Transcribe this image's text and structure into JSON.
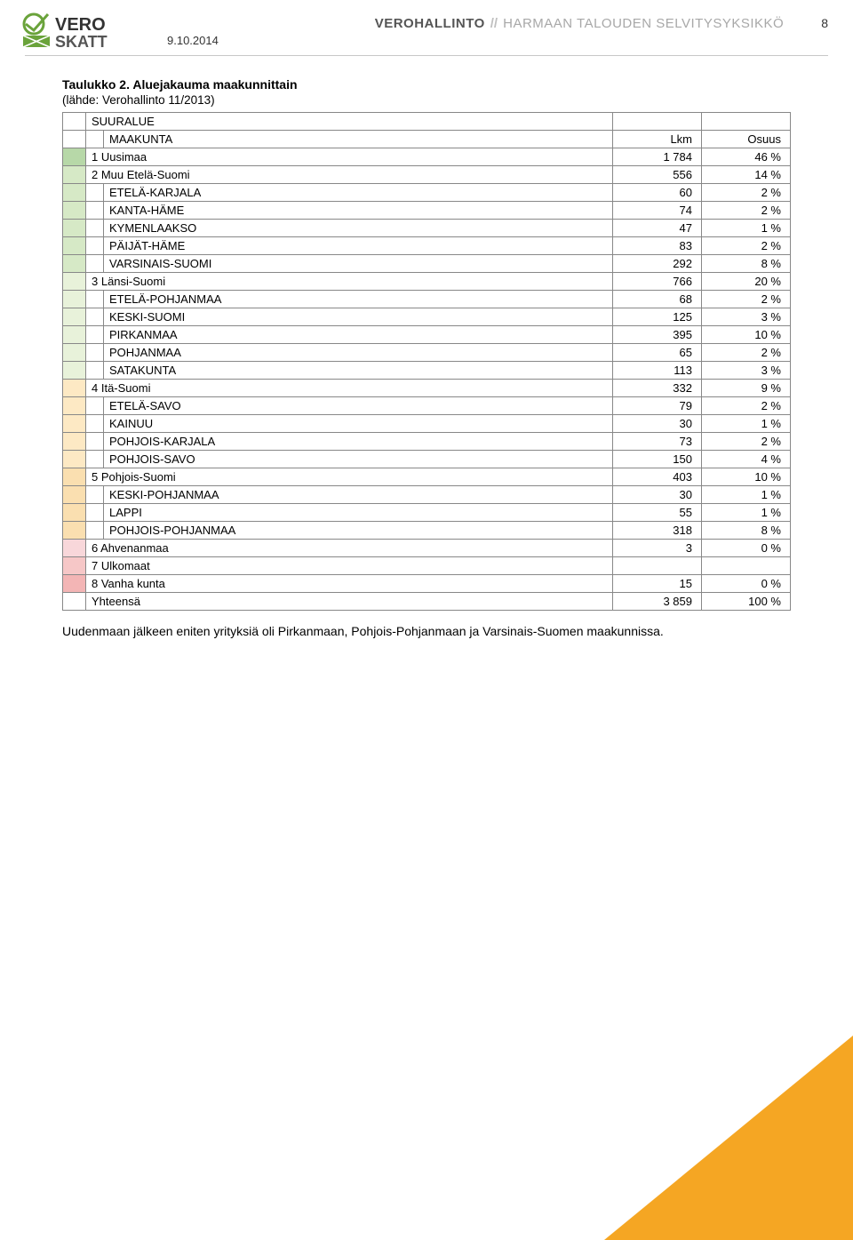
{
  "header": {
    "date": "9.10.2014",
    "agency": "VEROHALLINTO",
    "separator": "//",
    "unit": "HARMAAN TALOUDEN SELVITYSYKSIKKÖ",
    "page_number": "8",
    "logo_text_top": "VERO",
    "logo_text_bottom": "SKATT"
  },
  "table": {
    "title": "Taulukko 2. Aluejakauma maakunnittain",
    "subtitle": "(lähde: Verohallinto 11/2013)",
    "head": {
      "suuralue_label": "SUURALUE",
      "maakunta_label": "MAAKUNTA",
      "lkm_label": "Lkm",
      "osuus_label": "Osuus"
    },
    "colors": {
      "blank": "#ffffff",
      "region1": "#b7d8a8",
      "region2": "#d6e9c6",
      "region3": "#e8f2da",
      "region4": "#fde9c4",
      "region5": "#fadfb0",
      "region6": "#f8d7da",
      "region7": "#f6c7c7",
      "region8": "#f3b5b5",
      "footer": "#ffffff",
      "border": "#888888",
      "background": "#ffffff"
    },
    "rows": [
      {
        "swatch": "region1",
        "indent": false,
        "label": "1 Uusimaa",
        "lkm": "1 784",
        "osuus": "46 %"
      },
      {
        "swatch": "region2",
        "indent": false,
        "label": "2 Muu Etelä-Suomi",
        "lkm": "556",
        "osuus": "14 %"
      },
      {
        "swatch": "region2",
        "indent": true,
        "label": "ETELÄ-KARJALA",
        "lkm": "60",
        "osuus": "2 %"
      },
      {
        "swatch": "region2",
        "indent": true,
        "label": "KANTA-HÄME",
        "lkm": "74",
        "osuus": "2 %"
      },
      {
        "swatch": "region2",
        "indent": true,
        "label": "KYMENLAAKSO",
        "lkm": "47",
        "osuus": "1 %"
      },
      {
        "swatch": "region2",
        "indent": true,
        "label": "PÄIJÄT-HÄME",
        "lkm": "83",
        "osuus": "2 %"
      },
      {
        "swatch": "region2",
        "indent": true,
        "label": "VARSINAIS-SUOMI",
        "lkm": "292",
        "osuus": "8 %"
      },
      {
        "swatch": "region3",
        "indent": false,
        "label": "3 Länsi-Suomi",
        "lkm": "766",
        "osuus": "20 %"
      },
      {
        "swatch": "region3",
        "indent": true,
        "label": "ETELÄ-POHJANMAA",
        "lkm": "68",
        "osuus": "2 %"
      },
      {
        "swatch": "region3",
        "indent": true,
        "label": "KESKI-SUOMI",
        "lkm": "125",
        "osuus": "3 %"
      },
      {
        "swatch": "region3",
        "indent": true,
        "label": "PIRKANMAA",
        "lkm": "395",
        "osuus": "10 %"
      },
      {
        "swatch": "region3",
        "indent": true,
        "label": "POHJANMAA",
        "lkm": "65",
        "osuus": "2 %"
      },
      {
        "swatch": "region3",
        "indent": true,
        "label": "SATAKUNTA",
        "lkm": "113",
        "osuus": "3 %"
      },
      {
        "swatch": "region4",
        "indent": false,
        "label": "4 Itä-Suomi",
        "lkm": "332",
        "osuus": "9 %"
      },
      {
        "swatch": "region4",
        "indent": true,
        "label": "ETELÄ-SAVO",
        "lkm": "79",
        "osuus": "2 %"
      },
      {
        "swatch": "region4",
        "indent": true,
        "label": "KAINUU",
        "lkm": "30",
        "osuus": "1 %"
      },
      {
        "swatch": "region4",
        "indent": true,
        "label": "POHJOIS-KARJALA",
        "lkm": "73",
        "osuus": "2 %"
      },
      {
        "swatch": "region4",
        "indent": true,
        "label": "POHJOIS-SAVO",
        "lkm": "150",
        "osuus": "4 %"
      },
      {
        "swatch": "region5",
        "indent": false,
        "label": "5 Pohjois-Suomi",
        "lkm": "403",
        "osuus": "10 %"
      },
      {
        "swatch": "region5",
        "indent": true,
        "label": "KESKI-POHJANMAA",
        "lkm": "30",
        "osuus": "1 %"
      },
      {
        "swatch": "region5",
        "indent": true,
        "label": "LAPPI",
        "lkm": "55",
        "osuus": "1 %"
      },
      {
        "swatch": "region5",
        "indent": true,
        "label": "POHJOIS-POHJANMAA",
        "lkm": "318",
        "osuus": "8 %"
      },
      {
        "swatch": "region6",
        "indent": false,
        "label": "6 Ahvenanmaa",
        "lkm": "3",
        "osuus": "0 %"
      },
      {
        "swatch": "region7",
        "indent": false,
        "label": "7 Ulkomaat",
        "lkm": "",
        "osuus": ""
      },
      {
        "swatch": "region8",
        "indent": false,
        "label": "8 Vanha kunta",
        "lkm": "15",
        "osuus": "0 %"
      },
      {
        "swatch": "footer",
        "indent": false,
        "label": "Yhteensä",
        "lkm": "3 859",
        "osuus": "100 %"
      }
    ]
  },
  "paragraph": "Uudenmaan jälkeen eniten yrityksiä oli Pirkanmaan, Pohjois-Pohjanmaan ja Varsinais-Suomen maakunnissa.",
  "style": {
    "triangle_color": "#f5a623",
    "body_font_size": 14
  }
}
